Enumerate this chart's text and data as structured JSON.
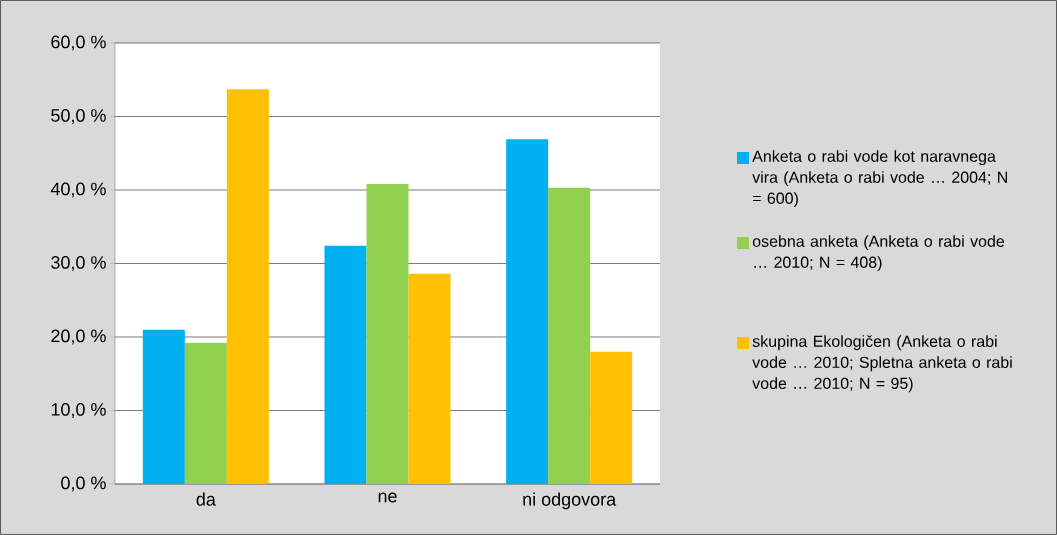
{
  "chart_data": {
    "type": "bar",
    "categories": [
      "da",
      "ne",
      "ni odgovora"
    ],
    "series": [
      {
        "name": "Anketa o rabi vode kot naravnega vira (Anketa o rabi vode … 2004; N = 600)",
        "color": "#00b0f0",
        "values": [
          21.0,
          32.4,
          46.9
        ]
      },
      {
        "name": "osebna anketa (Anketa o rabi vode … 2010; N = 408)",
        "color": "#92d050",
        "values": [
          19.2,
          40.8,
          40.3
        ]
      },
      {
        "name": "skupina Ekologičen (Anketa o rabi vode … 2010; Spletna anketa o rabi vode … 2010; N = 95)",
        "color": "#ffc000",
        "values": [
          53.7,
          28.6,
          18.0
        ]
      }
    ],
    "ylim": [
      0,
      60
    ],
    "yticks": [
      {
        "value": 0,
        "label": "0,0 %"
      },
      {
        "value": 10,
        "label": "10,0 %"
      },
      {
        "value": 20,
        "label": "20,0 %"
      },
      {
        "value": 30,
        "label": "30,0 %"
      },
      {
        "value": 40,
        "label": "40,0 %"
      },
      {
        "value": 50,
        "label": "50,0 %"
      },
      {
        "value": 60,
        "label": "60,0 %"
      }
    ],
    "grid": "y",
    "legend": "right"
  }
}
